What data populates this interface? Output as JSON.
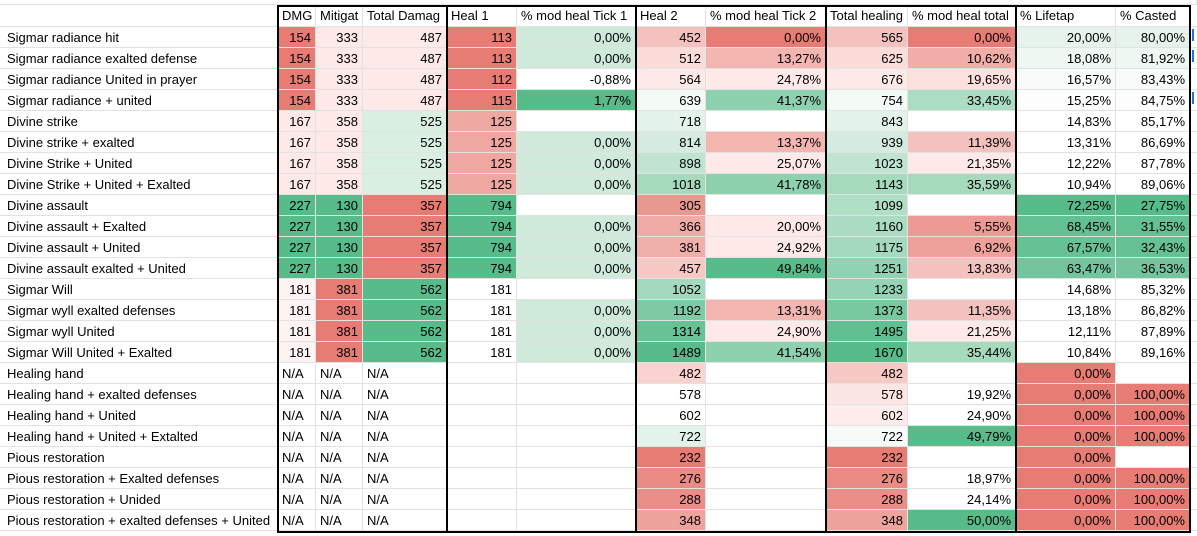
{
  "sheet": {
    "headers": [
      "",
      "DMG",
      "Mitigat",
      "Total Damag",
      "Heal 1",
      "% mod heal Tick 1",
      "Heal 2",
      "% mod heal Tick 2",
      "Total healing",
      "% mod heal total",
      "% Lifetap",
      "% Casted"
    ],
    "rows": [
      {
        "label": "Sigmar radiance hit",
        "cells": [
          "154",
          "333",
          "487",
          "113",
          "0,00%",
          "452",
          "0,00%",
          "565",
          "0,00%",
          "20,00%",
          "80,00%"
        ],
        "colors": [
          "#e67c73",
          "#fde9e8",
          "#fde9e8",
          "#e67c73",
          "#cfeadb",
          "#f4c2be",
          "#e67c73",
          "#f4c2be",
          "#e67c73",
          "#e6f3ec",
          "#e6f3ec"
        ]
      },
      {
        "label": "Sigmar radiance exalted defense",
        "cells": [
          "154",
          "333",
          "487",
          "113",
          "0,00%",
          "512",
          "13,27%",
          "625",
          "10,62%",
          "18,08%",
          "81,92%"
        ],
        "colors": [
          "#e67c73",
          "#fde9e8",
          "#fde9e8",
          "#e67c73",
          "#cfeadb",
          "#fbdcd9",
          "#f2b5b0",
          "#fbdcd9",
          "#f1aea8",
          "#eef7f1",
          "#eef7f1"
        ]
      },
      {
        "label": "Sigmar radiance United in prayer",
        "cells": [
          "154",
          "333",
          "487",
          "112",
          "-0,88%",
          "564",
          "24,78%",
          "676",
          "19,65%",
          "16,57%",
          "83,43%"
        ],
        "colors": [
          "#e67c73",
          "#fde9e8",
          "#fde9e8",
          "#e67c73",
          "#ffffff",
          "#fde9e8",
          "#fde9e8",
          "#fde9e8",
          "#fbe0de",
          "#f7fbf9",
          "#f7fbf9"
        ]
      },
      {
        "label": "Sigmar radiance + united",
        "cells": [
          "154",
          "333",
          "487",
          "115",
          "1,77%",
          "639",
          "41,37%",
          "754",
          "33,45%",
          "15,25%",
          "84,75%"
        ],
        "colors": [
          "#e67c73",
          "#fde9e8",
          "#fde9e8",
          "#e67c73",
          "#57bb8a",
          "#f4fbf7",
          "#8dd1af",
          "#f4fbf7",
          "#abddc3",
          "#fdfdfd",
          "#fdfdfd"
        ]
      },
      {
        "label": "Divine strike",
        "cells": [
          "167",
          "358",
          "525",
          "125",
          "",
          "718",
          "",
          "843",
          "",
          "14,83%",
          "85,17%"
        ],
        "colors": [
          "#fde9e8",
          "#fde9e8",
          "#d9efe2",
          "#efa7a1",
          "#ffffff",
          "#e3f3ea",
          "#ffffff",
          "#e3f3ea",
          "#ffffff",
          "#ffffff",
          "#ffffff"
        ]
      },
      {
        "label": "Divine strike + exalted",
        "cells": [
          "167",
          "358",
          "525",
          "125",
          "0,00%",
          "814",
          "13,37%",
          "939",
          "11,39%",
          "13,31%",
          "86,69%"
        ],
        "colors": [
          "#fde9e8",
          "#fde9e8",
          "#d9efe2",
          "#efa7a1",
          "#cfeadb",
          "#d4ecdf",
          "#f2b5b0",
          "#d4ecdf",
          "#f4c2be",
          "#ffffff",
          "#ffffff"
        ]
      },
      {
        "label": "Divine Strike + United",
        "cells": [
          "167",
          "358",
          "525",
          "125",
          "0,00%",
          "898",
          "25,07%",
          "1023",
          "21,35%",
          "12,22%",
          "87,78%"
        ],
        "colors": [
          "#fde9e8",
          "#fde9e8",
          "#d9efe2",
          "#efa7a1",
          "#cfeadb",
          "#bfe4d1",
          "#fde9e8",
          "#bfe4d1",
          "#fde9e8",
          "#ffffff",
          "#ffffff"
        ]
      },
      {
        "label": "Divine Strike + United + Exalted",
        "cells": [
          "167",
          "358",
          "525",
          "125",
          "0,00%",
          "1018",
          "41,78%",
          "1143",
          "35,59%",
          "10,94%",
          "89,06%"
        ],
        "colors": [
          "#fde9e8",
          "#fde9e8",
          "#d9efe2",
          "#efa7a1",
          "#cfeadb",
          "#a5dabd",
          "#8dd1af",
          "#a5dabd",
          "#a5dabd",
          "#ffffff",
          "#ffffff"
        ]
      },
      {
        "label": "Divine assault",
        "cells": [
          "227",
          "130",
          "357",
          "794",
          "",
          "305",
          "",
          "1099",
          "",
          "72,25%",
          "27,75%"
        ],
        "colors": [
          "#57bb8a",
          "#57bb8a",
          "#e67c73",
          "#57bb8a",
          "#ffffff",
          "#e99890",
          "#ffffff",
          "#b1dfc6",
          "#ffffff",
          "#57bb8a",
          "#57bb8a"
        ]
      },
      {
        "label": "Divine assault + Exalted",
        "cells": [
          "227",
          "130",
          "357",
          "794",
          "0,00%",
          "366",
          "20,00%",
          "1160",
          "5,55%",
          "68,45%",
          "31,55%"
        ],
        "colors": [
          "#57bb8a",
          "#57bb8a",
          "#e67c73",
          "#57bb8a",
          "#cfeadb",
          "#efaca6",
          "#fde9e8",
          "#a9dcc1",
          "#ec9a93",
          "#63c092",
          "#63c092"
        ]
      },
      {
        "label": "Divine assault + United",
        "cells": [
          "227",
          "130",
          "357",
          "794",
          "0,00%",
          "381",
          "24,92%",
          "1175",
          "6,92%",
          "67,57%",
          "32,43%"
        ],
        "colors": [
          "#57bb8a",
          "#57bb8a",
          "#e67c73",
          "#57bb8a",
          "#cfeadb",
          "#f0b0aa",
          "#fde9e8",
          "#a4d9bd",
          "#eea19a",
          "#66c194",
          "#66c194"
        ]
      },
      {
        "label": "Divine assault exalted + United",
        "cells": [
          "227",
          "130",
          "357",
          "794",
          "0,00%",
          "457",
          "49,84%",
          "1251",
          "13,83%",
          "63,47%",
          "36,53%"
        ],
        "colors": [
          "#57bb8a",
          "#57bb8a",
          "#e67c73",
          "#57bb8a",
          "#cfeadb",
          "#f6c9c5",
          "#57bb8a",
          "#90d2b1",
          "#f4c2be",
          "#72c59c",
          "#72c59c"
        ]
      },
      {
        "label": "Sigmar Will",
        "cells": [
          "181",
          "381",
          "562",
          "181",
          "",
          "1052",
          "",
          "1233",
          "",
          "14,68%",
          "85,32%"
        ],
        "colors": [
          "#fcf3f2",
          "#e67c73",
          "#57bb8a",
          "#ffffff",
          "#ffffff",
          "#a4d9bd",
          "#ffffff",
          "#94d4b4",
          "#ffffff",
          "#ffffff",
          "#ffffff"
        ]
      },
      {
        "label": "Sigmar wyll exalted defenses",
        "cells": [
          "181",
          "381",
          "562",
          "181",
          "0,00%",
          "1192",
          "13,31%",
          "1373",
          "11,35%",
          "13,18%",
          "86,82%"
        ],
        "colors": [
          "#fcf3f2",
          "#e67c73",
          "#57bb8a",
          "#ffffff",
          "#cfeadb",
          "#7ecaa4",
          "#f2b5b0",
          "#78c8a0",
          "#f4c2be",
          "#ffffff",
          "#ffffff"
        ]
      },
      {
        "label": "Sigmar wyll United",
        "cells": [
          "181",
          "381",
          "562",
          "181",
          "0,00%",
          "1314",
          "24,90%",
          "1495",
          "21,25%",
          "12,11%",
          "87,89%"
        ],
        "colors": [
          "#fcf3f2",
          "#e67c73",
          "#57bb8a",
          "#ffffff",
          "#cfeadb",
          "#69c296",
          "#fde9e8",
          "#62bf91",
          "#fde9e8",
          "#ffffff",
          "#ffffff"
        ]
      },
      {
        "label": "Sigmar Will  United + Exalted",
        "cells": [
          "181",
          "381",
          "562",
          "181",
          "0,00%",
          "1489",
          "41,54%",
          "1670",
          "35,44%",
          "10,84%",
          "89,16%"
        ],
        "colors": [
          "#fcf3f2",
          "#e67c73",
          "#57bb8a",
          "#ffffff",
          "#cfeadb",
          "#57bb8a",
          "#8dd1af",
          "#57bb8a",
          "#a5dabd",
          "#ffffff",
          "#ffffff"
        ]
      },
      {
        "label": "Healing hand",
        "cells": [
          "N/A",
          "N/A",
          "N/A",
          "",
          "",
          "482",
          "",
          "482",
          "",
          "0,00%",
          ""
        ],
        "colors": [
          "#ffffff",
          "#ffffff",
          "#ffffff",
          "#ffffff",
          "#ffffff",
          "#f8d3d0",
          "#ffffff",
          "#f6c9c5",
          "#ffffff",
          "#e67c73",
          "#ffffff"
        ]
      },
      {
        "label": "Healing hand + exalted defenses",
        "cells": [
          "N/A",
          "N/A",
          "N/A",
          "",
          "",
          "578",
          "",
          "578",
          "19,92%",
          "0,00%",
          "100,00%"
        ],
        "colors": [
          "#ffffff",
          "#ffffff",
          "#ffffff",
          "#ffffff",
          "#ffffff",
          "#ffffff",
          "#ffffff",
          "#fce6e4",
          "#ffffff",
          "#e67c73",
          "#e67c73"
        ]
      },
      {
        "label": "Healing hand + United",
        "cells": [
          "N/A",
          "N/A",
          "N/A",
          "",
          "",
          "602",
          "",
          "602",
          "24,90%",
          "0,00%",
          "100,00%"
        ],
        "colors": [
          "#ffffff",
          "#ffffff",
          "#ffffff",
          "#ffffff",
          "#ffffff",
          "#ffffff",
          "#ffffff",
          "#fdeceb",
          "#ffffff",
          "#e67c73",
          "#e67c73"
        ]
      },
      {
        "label": "Healing hand + United + Extalted",
        "cells": [
          "N/A",
          "N/A",
          "N/A",
          "",
          "",
          "722",
          "",
          "722",
          "49,79%",
          "0,00%",
          "100,00%"
        ],
        "colors": [
          "#ffffff",
          "#ffffff",
          "#ffffff",
          "#ffffff",
          "#ffffff",
          "#e3f3ea",
          "#ffffff",
          "#f6fbf8",
          "#57bb8a",
          "#e67c73",
          "#e67c73"
        ]
      },
      {
        "label": "Pious restoration",
        "cells": [
          "N/A",
          "N/A",
          "N/A",
          "",
          "",
          "232",
          "",
          "232",
          "",
          "0,00%",
          ""
        ],
        "colors": [
          "#ffffff",
          "#ffffff",
          "#ffffff",
          "#ffffff",
          "#ffffff",
          "#e67c73",
          "#ffffff",
          "#e67c73",
          "#ffffff",
          "#e67c73",
          "#ffffff"
        ]
      },
      {
        "label": "Pious restoration + Exalted defenses",
        "cells": [
          "N/A",
          "N/A",
          "N/A",
          "",
          "",
          "276",
          "",
          "276",
          "18,97%",
          "0,00%",
          "100,00%"
        ],
        "colors": [
          "#ffffff",
          "#ffffff",
          "#ffffff",
          "#ffffff",
          "#ffffff",
          "#e98b83",
          "#ffffff",
          "#e98b83",
          "#ffffff",
          "#e67c73",
          "#e67c73"
        ]
      },
      {
        "label": "Pious restoration + Unided",
        "cells": [
          "N/A",
          "N/A",
          "N/A",
          "",
          "",
          "288",
          "",
          "288",
          "24,14%",
          "0,00%",
          "100,00%"
        ],
        "colors": [
          "#ffffff",
          "#ffffff",
          "#ffffff",
          "#ffffff",
          "#ffffff",
          "#ea8f87",
          "#ffffff",
          "#ea8f87",
          "#ffffff",
          "#e67c73",
          "#e67c73"
        ]
      },
      {
        "label": "Pious restoration + exalted defenses + United",
        "cells": [
          "N/A",
          "N/A",
          "N/A",
          "",
          "",
          "348",
          "",
          "348",
          "50,00%",
          "0,00%",
          "100,00%"
        ],
        "colors": [
          "#ffffff",
          "#ffffff",
          "#ffffff",
          "#ffffff",
          "#ffffff",
          "#eea49d",
          "#ffffff",
          "#eea49d",
          "#57bb8a",
          "#e67c73",
          "#e67c73"
        ]
      }
    ]
  }
}
